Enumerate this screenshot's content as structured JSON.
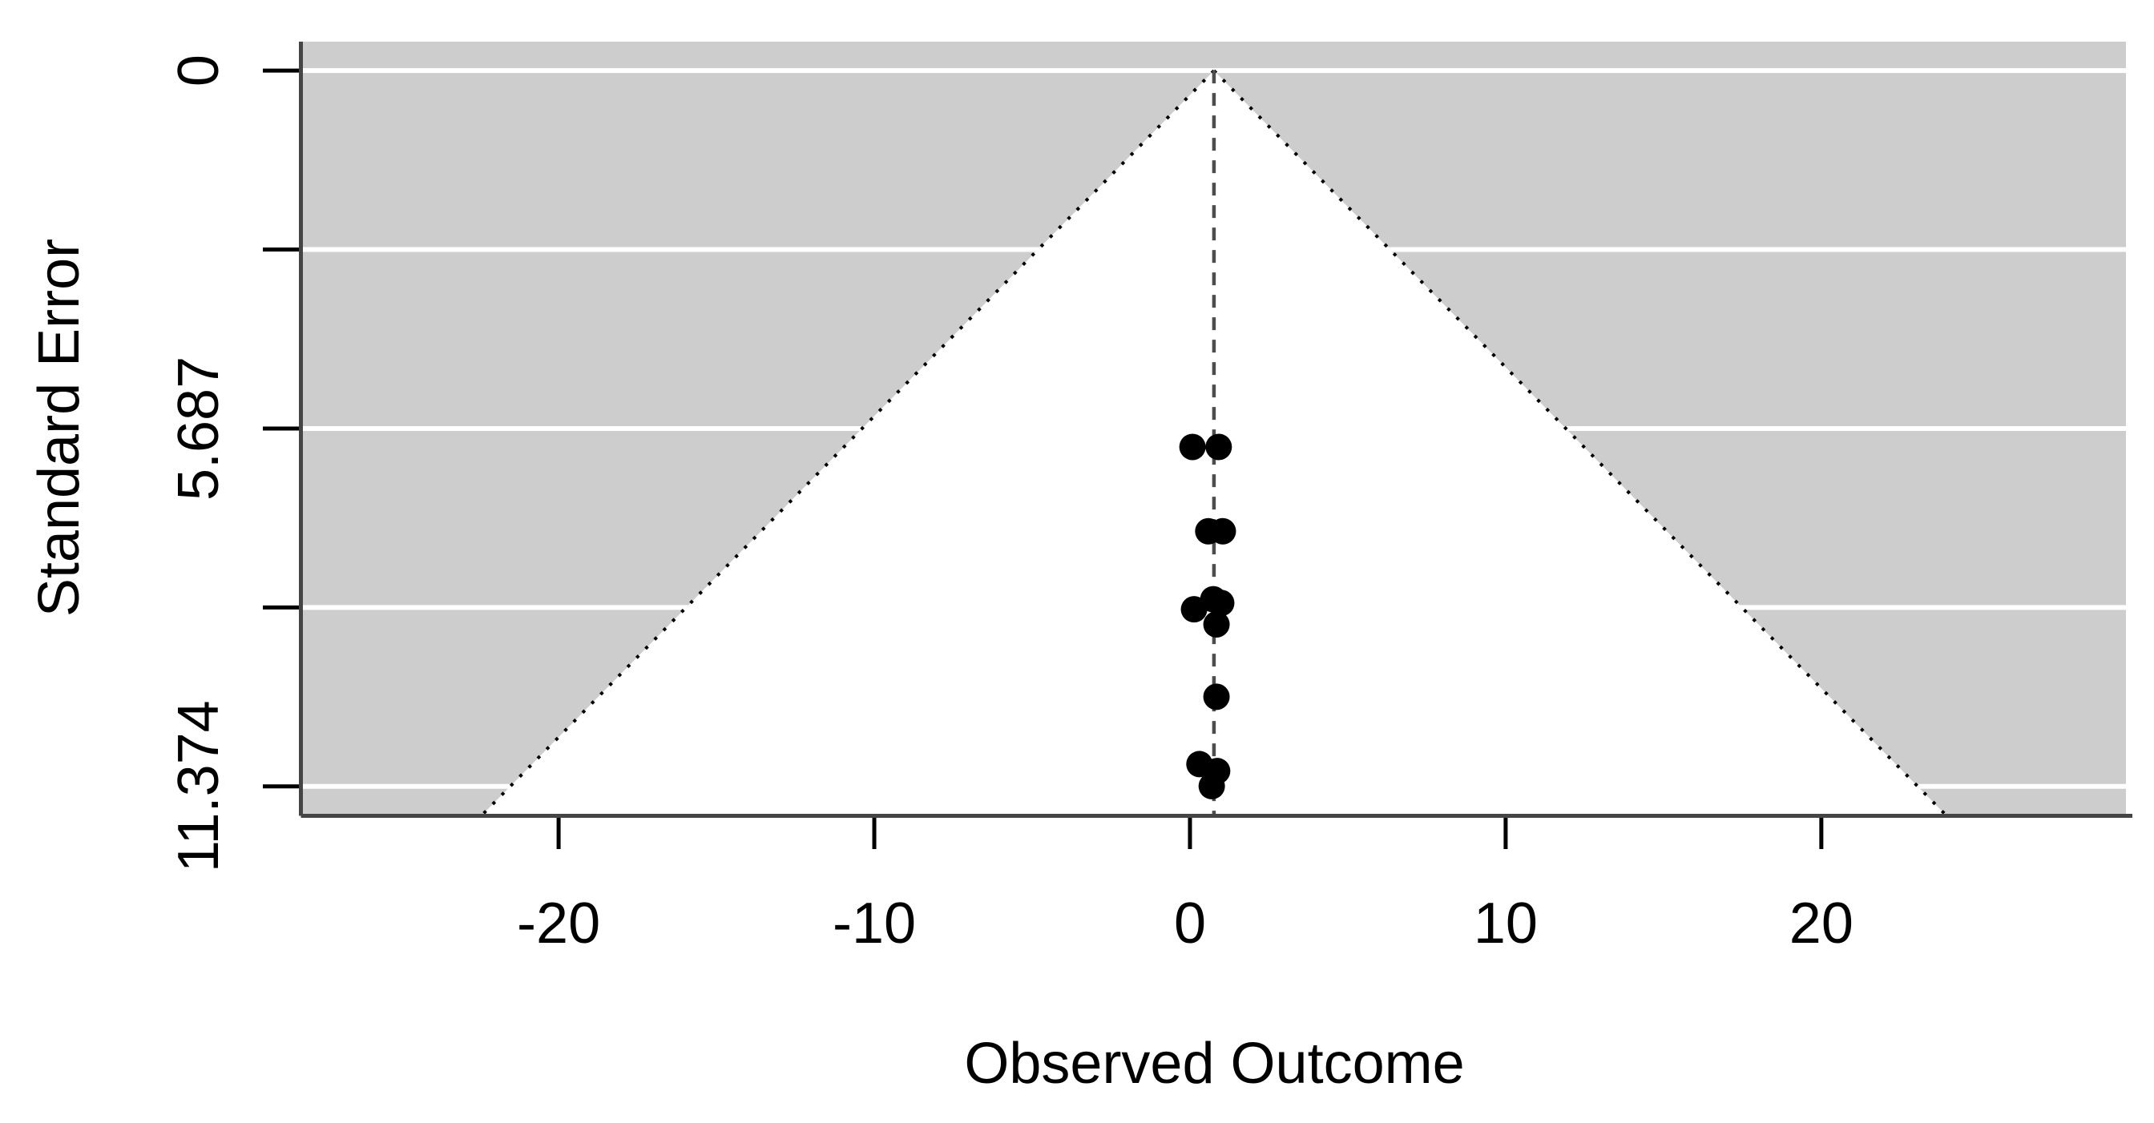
{
  "chart_data": {
    "type": "scatter",
    "subtype": "funnel-plot",
    "title": "",
    "xlabel": "Observed Outcome",
    "ylabel": "Standard Error",
    "x_ticks": [
      {
        "value": -20,
        "label": "-20"
      },
      {
        "value": -10,
        "label": "-10"
      },
      {
        "value": 0,
        "label": "0"
      },
      {
        "value": 10,
        "label": "10"
      },
      {
        "value": 20,
        "label": "20"
      }
    ],
    "y_ticks": [
      {
        "value": 0,
        "label": "0"
      },
      {
        "value": 2.8435,
        "label": ""
      },
      {
        "value": 5.687,
        "label": "5.687"
      },
      {
        "value": 8.5305,
        "label": ""
      },
      {
        "value": 11.374,
        "label": "11.374"
      }
    ],
    "xlim": [
      -28.1,
      29.65
    ],
    "ylim_se": [
      -0.46,
      11.81
    ],
    "se_axis_max_label": 11.374,
    "estimate": 0.76,
    "ci_level_multiplier": 1.96,
    "legend": "none",
    "grid": "white horizontal lines at y ticks over shaded outer region",
    "points": [
      {
        "x": 0.08,
        "se": 5.98
      },
      {
        "x": 0.91,
        "se": 5.98
      },
      {
        "x": 0.58,
        "se": 7.32
      },
      {
        "x": 1.04,
        "se": 7.32
      },
      {
        "x": 0.13,
        "se": 8.56
      },
      {
        "x": 0.74,
        "se": 8.4
      },
      {
        "x": 0.99,
        "se": 8.46
      },
      {
        "x": 0.84,
        "se": 8.8
      },
      {
        "x": 0.84,
        "se": 9.95
      },
      {
        "x": 0.3,
        "se": 11.02
      },
      {
        "x": 0.86,
        "se": 11.13
      },
      {
        "x": 0.69,
        "se": 11.37
      }
    ],
    "point_radius_px": 16.5,
    "colors": {
      "background": "#ffffff",
      "panel_shade": "#cdcdcd",
      "funnel_fill": "#ffffff",
      "gridline": "#ffffff",
      "axis_line": "#454545",
      "tick": "#000000",
      "funnel_edge": "#000000",
      "estimate_line": "#4d4d4d",
      "point": "#000000",
      "text": "#000000"
    }
  }
}
